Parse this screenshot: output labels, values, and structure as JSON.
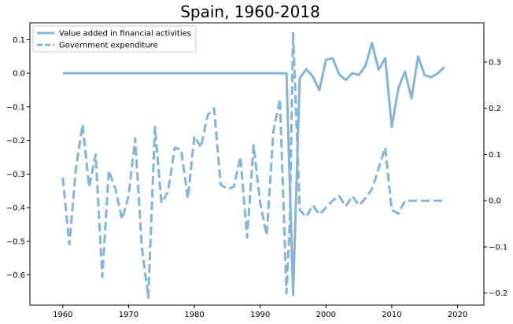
{
  "chart_data": {
    "type": "line",
    "title": "Spain, 1960-2018",
    "xlabel": "",
    "ylabel": "",
    "xlim": [
      1955,
      2024
    ],
    "ylim_left": [
      -0.69,
      0.15
    ],
    "ylim_right": [
      -0.226,
      0.385
    ],
    "x_ticks": [
      1960,
      1970,
      1980,
      1990,
      2000,
      2010,
      2020
    ],
    "y_ticks_left": [
      0.1,
      0.0,
      -0.1,
      -0.2,
      -0.3,
      -0.4,
      -0.5,
      -0.6
    ],
    "y_ticks_left_labels": [
      "0.1",
      "0.0",
      "−0.1",
      "−0.2",
      "−0.3",
      "−0.4",
      "−0.5",
      "−0.6"
    ],
    "y_ticks_right": [
      0.3,
      0.2,
      0.1,
      0.0,
      -0.1,
      -0.2
    ],
    "y_ticks_right_labels": [
      "0.3",
      "0.2",
      "0.1",
      "0.0",
      "−0.1",
      "−0.2"
    ],
    "grid": false,
    "legend_position": "top-left",
    "color": "#84b5d8",
    "series": [
      {
        "name": "Value added in financial activities",
        "axis": "left",
        "style": "solid",
        "x": [
          1960,
          1961,
          1962,
          1963,
          1964,
          1965,
          1966,
          1967,
          1968,
          1969,
          1970,
          1971,
          1972,
          1973,
          1974,
          1975,
          1976,
          1977,
          1978,
          1979,
          1980,
          1981,
          1982,
          1983,
          1984,
          1985,
          1986,
          1987,
          1988,
          1989,
          1990,
          1991,
          1992,
          1993,
          1994,
          1995,
          1996,
          1997,
          1998,
          1999,
          2000,
          2001,
          2002,
          2003,
          2004,
          2005,
          2006,
          2007,
          2008,
          2009,
          2010,
          2011,
          2012,
          2013,
          2014,
          2015,
          2016,
          2017,
          2018
        ],
        "values": [
          0,
          0,
          0,
          0,
          0,
          0,
          0,
          0,
          0,
          0,
          0,
          0,
          0,
          0,
          0,
          0,
          0,
          0,
          0,
          0,
          0,
          0,
          0,
          0,
          0,
          0,
          0,
          0,
          0,
          0,
          0,
          0,
          0,
          0,
          0,
          -0.66,
          -0.015,
          0.012,
          -0.01,
          -0.05,
          0.04,
          0.045,
          -0.003,
          -0.02,
          0.0,
          -0.005,
          0.022,
          0.09,
          0.01,
          0.045,
          -0.16,
          -0.045,
          0.005,
          -0.075,
          0.05,
          -0.006,
          -0.012,
          0.0,
          0.018
        ]
      },
      {
        "name": "Government expenditure",
        "axis": "right",
        "style": "dashed",
        "x": [
          1960,
          1961,
          1962,
          1963,
          1964,
          1965,
          1966,
          1967,
          1968,
          1969,
          1970,
          1971,
          1972,
          1973,
          1974,
          1975,
          1976,
          1977,
          1978,
          1979,
          1980,
          1981,
          1982,
          1983,
          1984,
          1985,
          1986,
          1987,
          1988,
          1989,
          1990,
          1991,
          1992,
          1993,
          1994,
          1994.5,
          1995,
          1996,
          1997,
          1998,
          1999,
          2000,
          2001,
          2002,
          2003,
          2004,
          2005,
          2006,
          2007,
          2008,
          2009,
          2010,
          2011,
          2012,
          2013,
          2014,
          2015,
          2016,
          2017,
          2018
        ],
        "values": [
          0.05,
          -0.095,
          0.07,
          0.165,
          0.03,
          0.1,
          -0.165,
          0.065,
          0.025,
          -0.04,
          0.01,
          0.135,
          -0.1,
          -0.21,
          0.16,
          -0.005,
          0.02,
          0.115,
          0.11,
          0.005,
          0.14,
          0.115,
          0.185,
          0.2,
          0.035,
          0.025,
          0.03,
          0.095,
          -0.08,
          0.12,
          -0.005,
          -0.075,
          0.15,
          0.22,
          -0.2,
          -0.05,
          0.365,
          -0.02,
          -0.035,
          -0.01,
          -0.03,
          -0.015,
          0.0,
          0.01,
          -0.012,
          0.01,
          -0.01,
          0.005,
          0.025,
          0.07,
          0.115,
          -0.02,
          -0.028,
          0.0,
          0.0,
          0.0,
          0.0,
          0.0,
          0.0,
          0.0
        ]
      }
    ]
  }
}
